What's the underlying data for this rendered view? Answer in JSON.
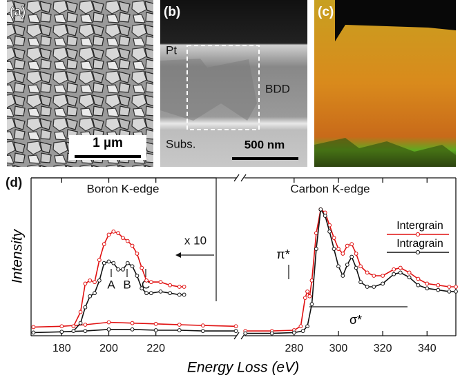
{
  "panels": {
    "a": {
      "label": "(a)",
      "scale_bar": "1 µm"
    },
    "b": {
      "label": "(b)",
      "pt": "Pt",
      "bdd": "BDD",
      "subs": "Subs.",
      "scale_bar": "500 nm"
    },
    "c": {
      "label": "(c)"
    }
  },
  "chart_data": {
    "type": "line",
    "label": "(d)",
    "x_label": "Energy Loss (eV)",
    "y_label": "Intensity",
    "annotations": {
      "boron": "Boron K-edge",
      "carbon": "Carbon K-edge",
      "scale": "x 10",
      "a": "A",
      "b": "B",
      "c": "C",
      "pi": "π*",
      "sigma": "σ*"
    },
    "xlim": [
      167,
      353
    ],
    "xbreak": [
      255,
      257
    ],
    "ylim": [
      0,
      1
    ],
    "xticks": [
      180,
      200,
      220,
      280,
      300,
      320,
      340
    ],
    "series": [
      {
        "name": "Intergrain",
        "color": "#e01010",
        "x": [
          168,
          180,
          190,
          200,
          210,
          220,
          230,
          240,
          254,
          258,
          270,
          280,
          283,
          285,
          286,
          287,
          288,
          290,
          292,
          294,
          296,
          298,
          300,
          302,
          304,
          306,
          308,
          310,
          313,
          316,
          320,
          325,
          328,
          332,
          336,
          340,
          345,
          350,
          353
        ],
        "values": [
          0.055,
          0.06,
          0.07,
          0.085,
          0.08,
          0.075,
          0.07,
          0.065,
          0.06,
          0.03,
          0.03,
          0.035,
          0.06,
          0.24,
          0.28,
          0.25,
          0.35,
          0.65,
          0.8,
          0.78,
          0.7,
          0.62,
          0.55,
          0.52,
          0.57,
          0.58,
          0.52,
          0.44,
          0.4,
          0.38,
          0.38,
          0.42,
          0.43,
          0.4,
          0.36,
          0.33,
          0.32,
          0.31,
          0.31
        ],
        "scaled_x": [
          185,
          188,
          190,
          192,
          194,
          196,
          198,
          200,
          202,
          204,
          206,
          208,
          210,
          212,
          214,
          216,
          218,
          222,
          226,
          230,
          232
        ],
        "scaled_values": [
          0.06,
          0.15,
          0.33,
          0.35,
          0.34,
          0.48,
          0.58,
          0.64,
          0.66,
          0.65,
          0.62,
          0.6,
          0.57,
          0.52,
          0.43,
          0.35,
          0.34,
          0.34,
          0.32,
          0.31,
          0.31
        ]
      },
      {
        "name": "Intragrain",
        "color": "#111111",
        "x": [
          168,
          180,
          190,
          200,
          210,
          220,
          230,
          240,
          254,
          258,
          270,
          280,
          284,
          286,
          288,
          290,
          292,
          294,
          296,
          298,
          300,
          302,
          304,
          306,
          308,
          310,
          313,
          316,
          320,
          325,
          328,
          332,
          336,
          340,
          345,
          350,
          353
        ],
        "values": [
          0.02,
          0.025,
          0.03,
          0.04,
          0.04,
          0.035,
          0.035,
          0.03,
          0.03,
          0.015,
          0.015,
          0.02,
          0.03,
          0.06,
          0.2,
          0.55,
          0.8,
          0.76,
          0.66,
          0.55,
          0.44,
          0.38,
          0.45,
          0.5,
          0.43,
          0.34,
          0.31,
          0.31,
          0.33,
          0.39,
          0.4,
          0.37,
          0.32,
          0.3,
          0.29,
          0.28,
          0.28
        ],
        "scaled_x": [
          185,
          188,
          190,
          192,
          194,
          196,
          198,
          200,
          202,
          204,
          206,
          208,
          210,
          212,
          214,
          216,
          218,
          222,
          226,
          230,
          232
        ],
        "scaled_values": [
          0.03,
          0.08,
          0.18,
          0.25,
          0.27,
          0.35,
          0.46,
          0.47,
          0.46,
          0.42,
          0.42,
          0.46,
          0.44,
          0.38,
          0.3,
          0.27,
          0.27,
          0.28,
          0.27,
          0.26,
          0.26
        ]
      }
    ]
  }
}
